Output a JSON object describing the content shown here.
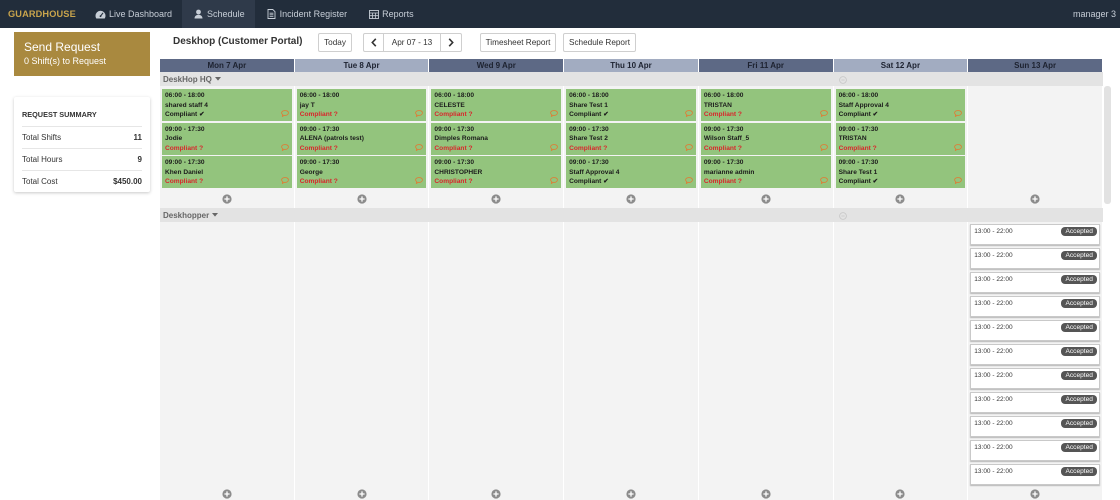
{
  "app": {
    "logo": "GUARDHOUSE",
    "user": "manager 3"
  },
  "nav": [
    {
      "label": "Live Dashboard",
      "icon": "dashboard-icon"
    },
    {
      "label": "Schedule",
      "icon": "user-icon",
      "active": true
    },
    {
      "label": "Incident Register",
      "icon": "file-text-icon"
    },
    {
      "label": "Reports",
      "icon": "table-icon"
    }
  ],
  "send_request": {
    "title": "Send Request",
    "subtitle": "0 Shift(s) to Request"
  },
  "summary": {
    "title": "REQUEST SUMMARY",
    "rows": [
      {
        "label": "Total Shifts",
        "value": "11"
      },
      {
        "label": "Total Hours",
        "value": "9"
      },
      {
        "label": "Total Cost",
        "value": "$450.00"
      }
    ]
  },
  "toolbar": {
    "site_title": "Deskhop (Customer Portal)",
    "today": "Today",
    "prev_icon": "chevron-left-icon",
    "date_range": "Apr 07 - 13",
    "next_icon": "chevron-right-icon",
    "timesheet_report": "Timesheet Report",
    "schedule_report": "Schedule Report"
  },
  "days": [
    "Mon 7 Apr",
    "Tue 8 Apr",
    "Wed 9 Apr",
    "Thu 10 Apr",
    "Fri 11 Apr",
    "Sat 12 Apr",
    "Sun 13 Apr"
  ],
  "groups": [
    {
      "name": "DeskHop HQ",
      "columns": [
        [
          {
            "time": "06:00 - 18:00",
            "name": "shared staff 4",
            "compliance": "Compliant ✔"
          },
          {
            "time": "09:00 - 17:30",
            "name": "Jodie",
            "compliance": "Compliant ?"
          },
          {
            "time": "09:00 - 17:30",
            "name": "Khen Daniel",
            "compliance": "Compliant ?"
          }
        ],
        [
          {
            "time": "06:00 - 18:00",
            "name": "jay T",
            "compliance": "Compliant ?"
          },
          {
            "time": "09:00 - 17:30",
            "name": "ALENA (patrols test)",
            "compliance": "Compliant ?"
          },
          {
            "time": "09:00 - 17:30",
            "name": "George",
            "compliance": "Compliant ?"
          }
        ],
        [
          {
            "time": "06:00 - 18:00",
            "name": "CELESTE",
            "compliance": "Compliant ?"
          },
          {
            "time": "09:00 - 17:30",
            "name": "Dimples Romana",
            "compliance": "Compliant ?"
          },
          {
            "time": "09:00 - 17:30",
            "name": "CHRISTOPHER",
            "compliance": "Compliant ?"
          }
        ],
        [
          {
            "time": "06:00 - 18:00",
            "name": "Share Test 1",
            "compliance": "Compliant ✔"
          },
          {
            "time": "09:00 - 17:30",
            "name": "Share Test 2",
            "compliance": "Compliant ?"
          },
          {
            "time": "09:00 - 17:30",
            "name": "Staff Approval 4",
            "compliance": "Compliant ✔"
          }
        ],
        [
          {
            "time": "06:00 - 18:00",
            "name": "TRISTAN",
            "compliance": "Compliant ?"
          },
          {
            "time": "09:00 - 17:30",
            "name": "Wilson Staff_5",
            "compliance": "Compliant ?"
          },
          {
            "time": "09:00 - 17:30",
            "name": "marianne admin",
            "compliance": "Compliant ?"
          }
        ],
        [
          {
            "time": "06:00 - 18:00",
            "name": "Staff Approval 4",
            "compliance": "Compliant ✔"
          },
          {
            "time": "09:00 - 17:30",
            "name": "TRISTAN",
            "compliance": "Compliant ?"
          },
          {
            "time": "09:00 - 17:30",
            "name": "Share Test 1",
            "compliance": "Compliant ✔"
          }
        ],
        []
      ]
    },
    {
      "name": "Deskhopper",
      "columns": [
        [],
        [],
        [],
        [],
        [],
        [],
        [
          {
            "time": "13:00 - 22:00",
            "status": "Accepted"
          },
          {
            "time": "13:00 - 22:00",
            "status": "Accepted"
          },
          {
            "time": "13:00 - 22:00",
            "status": "Accepted"
          },
          {
            "time": "13:00 - 22:00",
            "status": "Accepted"
          },
          {
            "time": "13:00 - 22:00",
            "status": "Accepted"
          },
          {
            "time": "13:00 - 22:00",
            "status": "Accepted"
          },
          {
            "time": "13:00 - 22:00",
            "status": "Accepted"
          },
          {
            "time": "13:00 - 22:00",
            "status": "Accepted"
          },
          {
            "time": "13:00 - 22:00",
            "status": "Accepted"
          },
          {
            "time": "13:00 - 22:00",
            "status": "Accepted"
          },
          {
            "time": "13:00 - 22:00",
            "status": "Accepted"
          }
        ]
      ]
    }
  ],
  "colors": {
    "nav_bg": "#222d3b",
    "brand": "#c9a44c",
    "send_request_bg": "#a9893f",
    "shift_green": "#93c47d",
    "noncompliant": "#d9262c",
    "badge": "#555555",
    "header_dark": "#5d6985",
    "header_light": "#a2acc1"
  }
}
